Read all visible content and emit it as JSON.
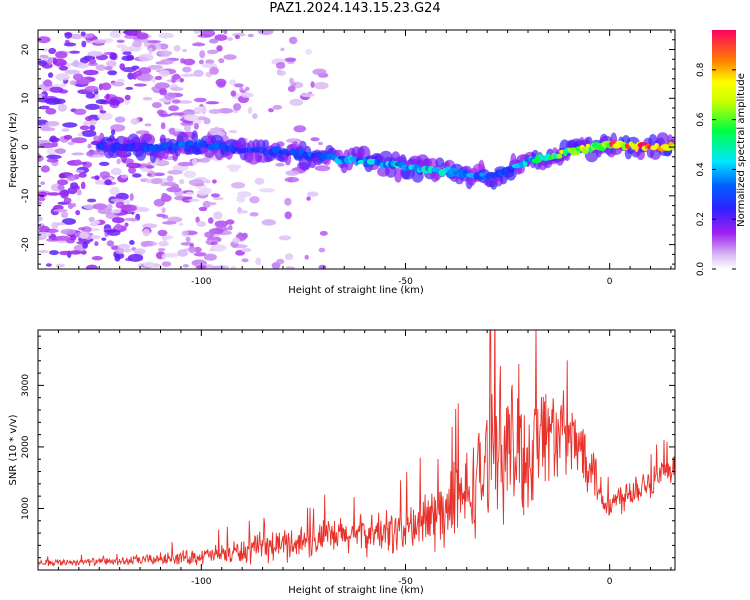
{
  "title": "PAZ1.2024.143.15.23.G24",
  "chart_data": [
    {
      "type": "heatmap",
      "title": "PAZ1.2024.143.15.23.G24",
      "xlabel": "Height of straight line (km)",
      "ylabel": "Frequency (Hz)",
      "xlim": [
        -140,
        16
      ],
      "ylim": [
        -25,
        24
      ],
      "xticks": [
        -100,
        -50,
        0
      ],
      "yticks": [
        -20,
        -10,
        0,
        10,
        20
      ],
      "colorbar": {
        "label": "Normalized spectral amplitude",
        "range": [
          0.0,
          0.96
        ],
        "ticks": [
          0.0,
          0.2,
          0.4,
          0.6,
          0.8
        ]
      },
      "ridge": {
        "x": [
          -122,
          -110,
          -100,
          -90,
          -80,
          -70,
          -60,
          -50,
          -40,
          -30,
          -25,
          -20,
          -10,
          0,
          10,
          16
        ],
        "frequency": [
          0,
          0,
          0.5,
          -0.5,
          -1,
          -2,
          -3,
          -4,
          -5,
          -6,
          -5,
          -3,
          -1,
          0.5,
          0,
          0
        ],
        "amplitude": [
          0.25,
          0.3,
          0.35,
          0.3,
          0.3,
          0.35,
          0.4,
          0.45,
          0.45,
          0.35,
          0.3,
          0.45,
          0.65,
          0.8,
          0.9,
          0.9
        ]
      },
      "noise_region_x": [
        -140,
        -100
      ]
    },
    {
      "type": "line",
      "xlabel": "Height of straight line (km)",
      "ylabel": "SNR (10 * v/v)",
      "xlim": [
        -140,
        16
      ],
      "ylim": [
        0,
        3900
      ],
      "xticks": [
        -100,
        -50,
        0
      ],
      "yticks": [
        1000,
        2000,
        3000
      ],
      "color": "#e8312a",
      "envelope": {
        "x": [
          -140,
          -120,
          -100,
          -90,
          -80,
          -70,
          -60,
          -50,
          -45,
          -40,
          -35,
          -30,
          -28,
          -25,
          -22,
          -20,
          -18,
          -15,
          -10,
          -5,
          -2,
          0,
          5,
          10,
          16
        ],
        "mean": [
          120,
          140,
          220,
          300,
          420,
          520,
          580,
          650,
          800,
          950,
          1200,
          1700,
          2300,
          1900,
          2000,
          1800,
          2200,
          2300,
          2100,
          1900,
          1200,
          1050,
          1300,
          1450,
          1600
        ],
        "spread": [
          60,
          80,
          160,
          260,
          320,
          360,
          380,
          480,
          650,
          750,
          900,
          1100,
          1400,
          1300,
          1500,
          1200,
          1200,
          1000,
          800,
          700,
          400,
          300,
          350,
          350,
          300
        ]
      }
    }
  ]
}
